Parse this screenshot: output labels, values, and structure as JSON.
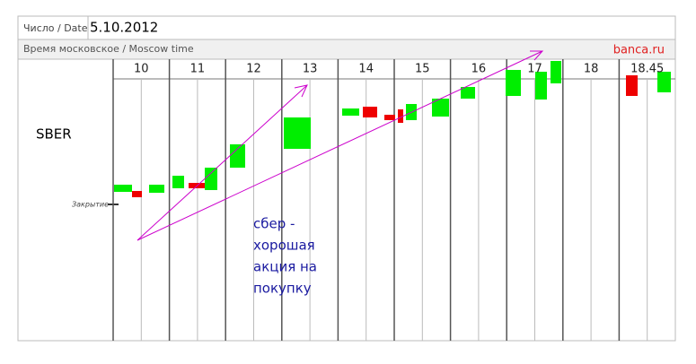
{
  "header": {
    "date_label": "Число / Date",
    "date": "5.10.2012",
    "time_label": "Время московское / Moscow time",
    "source": "banca.ru"
  },
  "hours": [
    "10",
    "11",
    "12",
    "13",
    "14",
    "15",
    "16",
    "17",
    "18",
    "18.45"
  ],
  "ticker": "SBER",
  "close_label": "Закрытие",
  "annotation": [
    "сбер -",
    "хорошая",
    "акция на",
    "покупку"
  ]
}
